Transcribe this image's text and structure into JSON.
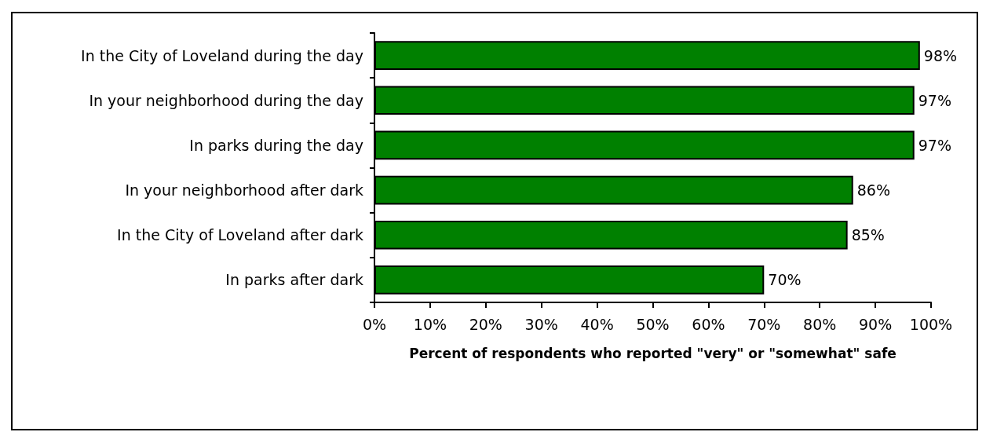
{
  "chart_data": {
    "type": "bar",
    "orientation": "horizontal",
    "xlabel": "Percent of respondents who reported \"very\" or \"somewhat\" safe",
    "categories": [
      "In the City of Loveland during the day",
      "In your neighborhood during the day",
      "In parks during the day",
      "In your neighborhood after dark",
      "In the City of Loveland after dark",
      "In parks after dark"
    ],
    "values": [
      98,
      97,
      97,
      86,
      85,
      70
    ],
    "value_labels": [
      "98%",
      "97%",
      "97%",
      "86%",
      "85%",
      "70%"
    ],
    "color": "#008000",
    "xlim": [
      0,
      100
    ],
    "xticks": [
      {
        "value": 0,
        "label": "0%"
      },
      {
        "value": 10,
        "label": "10%"
      },
      {
        "value": 20,
        "label": "20%"
      },
      {
        "value": 30,
        "label": "30%"
      },
      {
        "value": 40,
        "label": "40%"
      },
      {
        "value": 50,
        "label": "50%"
      },
      {
        "value": 60,
        "label": "60%"
      },
      {
        "value": 70,
        "label": "70%"
      },
      {
        "value": 80,
        "label": "80%"
      },
      {
        "value": 90,
        "label": "90%"
      },
      {
        "value": 100,
        "label": "100%"
      }
    ],
    "grid": false
  }
}
